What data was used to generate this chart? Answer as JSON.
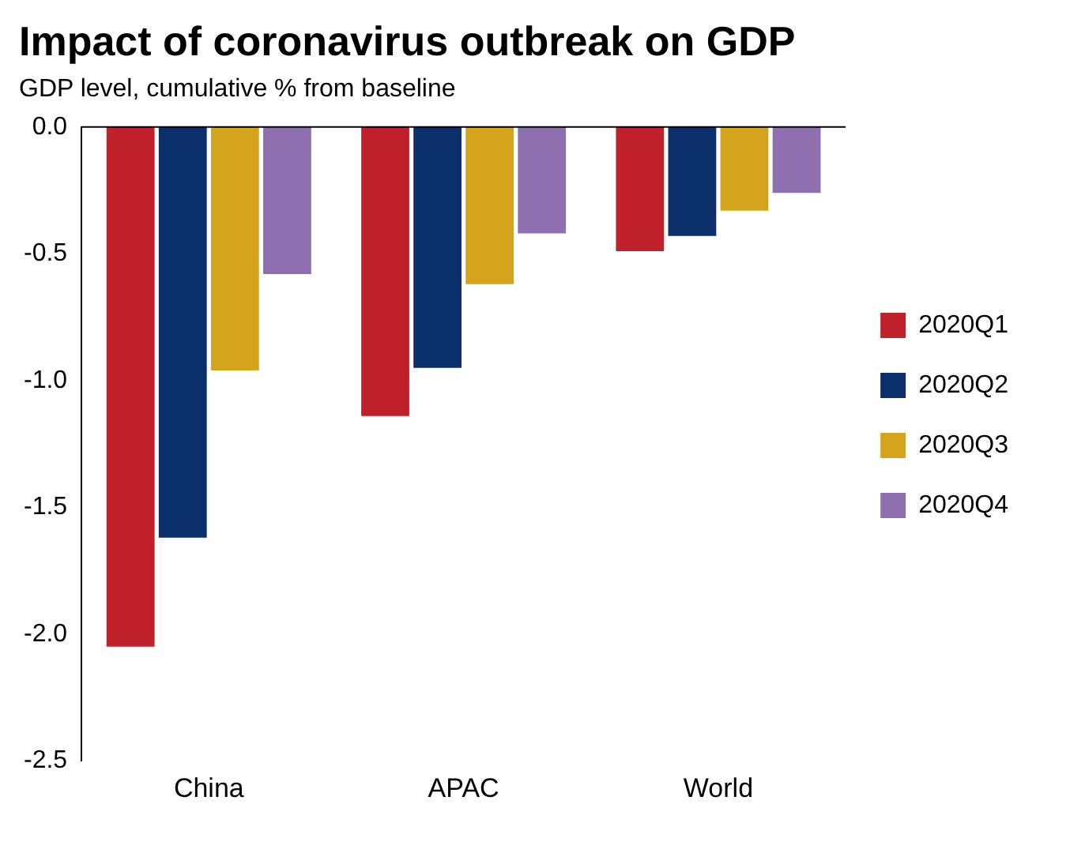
{
  "chart_data": {
    "type": "bar",
    "title": "Impact of coronavirus outbreak on GDP",
    "subtitle": "GDP level, cumulative % from baseline",
    "categories": [
      "China",
      "APAC",
      "World"
    ],
    "series": [
      {
        "name": "2020Q1",
        "color": "#c0202a",
        "values": [
          -2.05,
          -1.14,
          -0.49
        ]
      },
      {
        "name": "2020Q2",
        "color": "#0a2f6b",
        "values": [
          -1.62,
          -0.95,
          -0.43
        ]
      },
      {
        "name": "2020Q3",
        "color": "#d4a51c",
        "values": [
          -0.96,
          -0.62,
          -0.33
        ]
      },
      {
        "name": "2020Q4",
        "color": "#8e6fb0",
        "values": [
          -0.58,
          -0.42,
          -0.26
        ]
      }
    ],
    "ylim": [
      -2.5,
      0
    ],
    "yticks": [
      {
        "value": -2.5,
        "label": "-2.5"
      },
      {
        "value": -2,
        "label": "-2.0"
      },
      {
        "value": -1.5,
        "label": "-1.5"
      },
      {
        "value": -1,
        "label": "-1.0"
      },
      {
        "value": -0.5,
        "label": "-0.5"
      },
      {
        "value": 0,
        "label": "0.0"
      }
    ],
    "grid": false,
    "legend": "right"
  }
}
